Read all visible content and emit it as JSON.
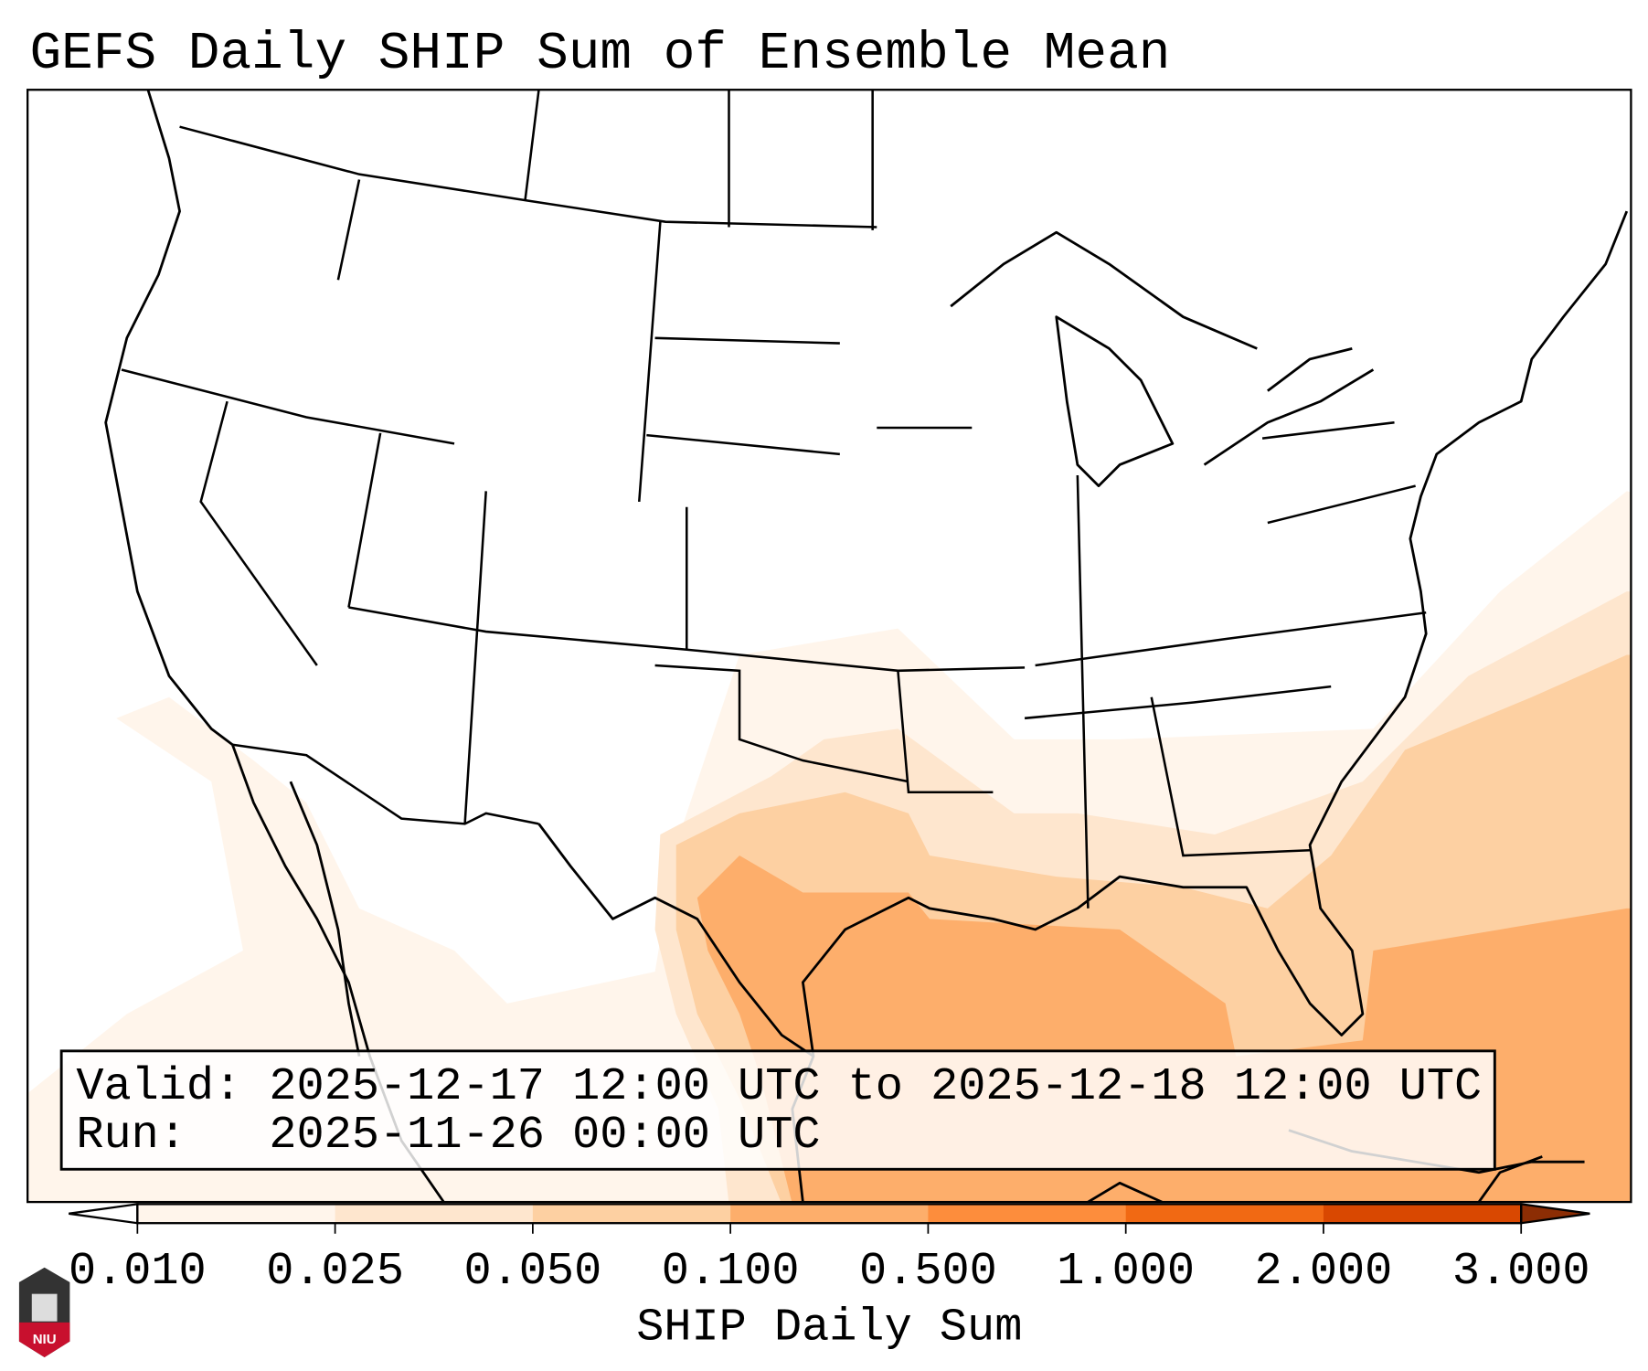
{
  "chart_data": {
    "type": "heatmap",
    "title": "GEFS Daily SHIP Sum of Ensemble Mean",
    "colorbar": {
      "label": "SHIP Daily Sum",
      "ticks": [
        "0.010",
        "0.025",
        "0.050",
        "0.100",
        "0.500",
        "1.000",
        "2.000",
        "3.000"
      ],
      "bins": [
        {
          "range": [
            0.01,
            0.025
          ],
          "color": "#fff5eb"
        },
        {
          "range": [
            0.025,
            0.05
          ],
          "color": "#fee6ce"
        },
        {
          "range": [
            0.05,
            0.1
          ],
          "color": "#fdd0a2"
        },
        {
          "range": [
            0.1,
            0.5
          ],
          "color": "#fdae6b"
        },
        {
          "range": [
            0.5,
            1.0
          ],
          "color": "#fd8d3c"
        },
        {
          "range": [
            1.0,
            2.0
          ],
          "color": "#f16913"
        },
        {
          "range": [
            2.0,
            3.0
          ],
          "color": "#d94801"
        }
      ],
      "under_color": "#ffffff",
      "over_color": "#8c2d04",
      "extend": "both"
    },
    "region": "Continental United States, Gulf of Mexico, western Atlantic",
    "max_observed_bin": [
      0.1,
      0.5
    ],
    "max_area": "Gulf of Mexico and southwest Atlantic"
  },
  "info": {
    "valid_line": "Valid: 2025-12-17 12:00 UTC to 2025-12-18 12:00 UTC",
    "run_line": "Run:   2025-11-26 00:00 UTC"
  },
  "logo_text": "NIU"
}
